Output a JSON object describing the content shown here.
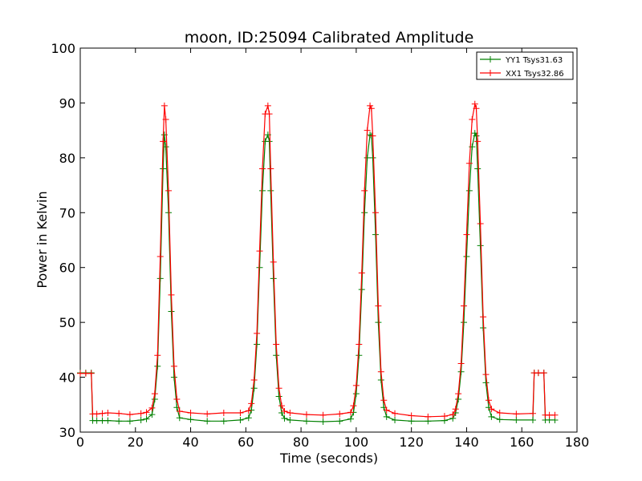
{
  "chart_data": {
    "type": "line",
    "title": "moon, ID:25094 Calibrated Amplitude",
    "xlabel": "Time (seconds)",
    "ylabel": "Power in Kelvin",
    "xlim": [
      0,
      180
    ],
    "ylim": [
      30,
      100
    ],
    "xticks": [
      "0",
      "20",
      "40",
      "60",
      "80",
      "100",
      "120",
      "140",
      "160",
      "180"
    ],
    "yticks": [
      "30",
      "40",
      "50",
      "60",
      "70",
      "80",
      "90",
      "100"
    ],
    "grid": false,
    "legend_position": "top-right",
    "marker": "+",
    "series": [
      {
        "name": "YY1 Tsys31.63",
        "color": "#008000",
        "x": [
          0,
          2,
          4,
          4.5,
          6,
          8,
          10,
          14,
          18,
          22,
          24,
          26,
          27,
          28,
          29,
          30,
          30.5,
          31,
          32,
          33,
          34,
          35,
          36,
          40,
          46,
          52,
          58,
          61,
          62,
          63,
          64,
          65,
          66,
          67,
          68,
          68.5,
          69,
          70,
          71,
          72,
          73,
          74,
          76,
          82,
          88,
          94,
          98,
          99,
          100,
          101,
          102,
          103,
          104,
          105,
          105.5,
          106,
          107,
          108,
          109,
          110,
          111,
          114,
          120,
          126,
          132,
          135,
          136,
          137,
          138,
          139,
          140,
          141,
          142,
          143,
          143.5,
          144,
          145,
          146,
          147,
          148,
          149,
          152,
          158,
          164,
          164.5,
          166,
          168,
          168.5,
          170,
          172
        ],
        "y": [
          40.8,
          40.8,
          40.8,
          32.1,
          32.1,
          32.1,
          32.1,
          32.0,
          32.0,
          32.2,
          32.4,
          33.2,
          36,
          42,
          58,
          78,
          84.2,
          82,
          70,
          52,
          40,
          34.5,
          32.6,
          32.3,
          32.0,
          32.0,
          32.2,
          32.6,
          34,
          38,
          46,
          60,
          74,
          83,
          84.2,
          83,
          74,
          58,
          44,
          36.5,
          33.5,
          32.5,
          32.2,
          32.0,
          31.9,
          32.0,
          32.4,
          33.6,
          37,
          44,
          56,
          70,
          80,
          84.2,
          84,
          80,
          66,
          50,
          39.5,
          34.5,
          32.8,
          32.2,
          32.0,
          32.0,
          32.1,
          32.5,
          33.5,
          36,
          41,
          50,
          62,
          74,
          82,
          84.5,
          84,
          78,
          64,
          49,
          39,
          34.5,
          32.8,
          32.3,
          32.2,
          32.2,
          40.8,
          40.8,
          40.8,
          32.2,
          32.2,
          32.2
        ]
      },
      {
        "name": "XX1 Tsys32.86",
        "color": "#ff0000",
        "x": [
          0,
          2,
          4,
          4.5,
          6,
          8,
          10,
          14,
          18,
          22,
          24,
          26,
          27,
          28,
          29,
          30,
          30.5,
          31,
          32,
          33,
          34,
          35,
          36,
          40,
          46,
          52,
          58,
          61,
          62,
          63,
          64,
          65,
          66,
          67,
          68,
          68.5,
          69,
          70,
          71,
          72,
          73,
          74,
          76,
          82,
          88,
          94,
          98,
          99,
          100,
          101,
          102,
          103,
          104,
          105,
          105.5,
          106,
          107,
          108,
          109,
          110,
          111,
          114,
          120,
          126,
          132,
          135,
          136,
          137,
          138,
          139,
          140,
          141,
          142,
          143,
          143.5,
          144,
          145,
          146,
          147,
          148,
          149,
          152,
          158,
          164,
          164.5,
          166,
          168,
          168.5,
          170,
          172
        ],
        "y": [
          40.7,
          40.7,
          40.7,
          33.3,
          33.3,
          33.4,
          33.5,
          33.4,
          33.2,
          33.4,
          33.6,
          34.4,
          37,
          44,
          62,
          83,
          89.5,
          87,
          74,
          55,
          42,
          36,
          33.8,
          33.5,
          33.3,
          33.5,
          33.5,
          33.9,
          35.2,
          39.5,
          48,
          63,
          78,
          88,
          89.5,
          88,
          78,
          61,
          46,
          38,
          34.8,
          33.8,
          33.5,
          33.2,
          33.1,
          33.3,
          33.6,
          34.8,
          38.5,
          46,
          59,
          74,
          85,
          89.5,
          89,
          84,
          70,
          53,
          41,
          35.8,
          34,
          33.4,
          33.0,
          32.8,
          32.9,
          33.2,
          34.2,
          37,
          42.5,
          53,
          66,
          79,
          87,
          89.8,
          89,
          83,
          68,
          51,
          40.5,
          35.8,
          34.2,
          33.5,
          33.3,
          33.4,
          40.8,
          40.8,
          40.8,
          33.1,
          33.1,
          33.1
        ]
      }
    ]
  }
}
